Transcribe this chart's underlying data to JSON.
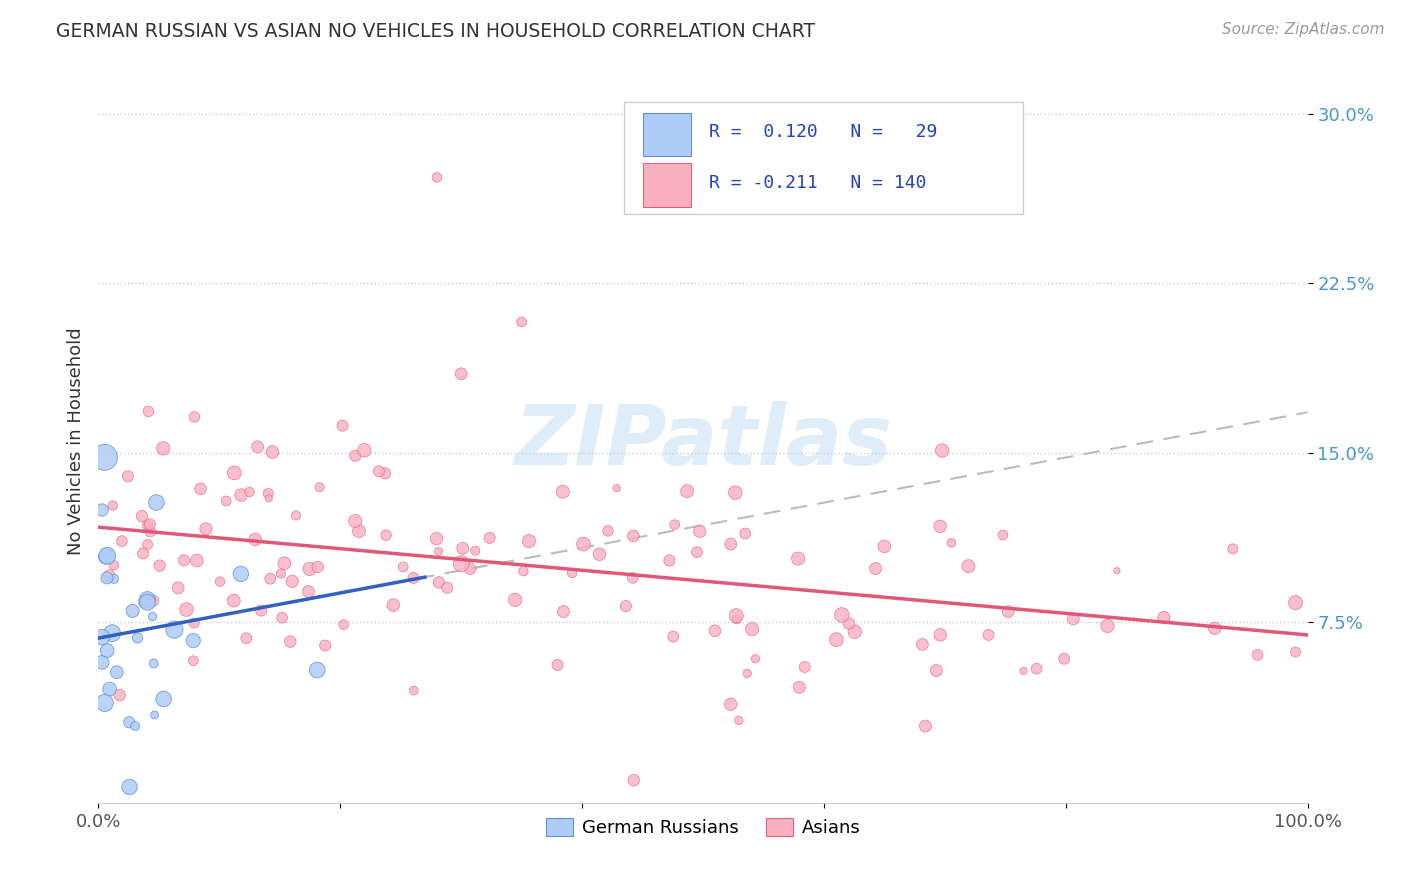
{
  "title": "GERMAN RUSSIAN VS ASIAN NO VEHICLES IN HOUSEHOLD CORRELATION CHART",
  "source": "Source: ZipAtlas.com",
  "ylabel": "No Vehicles in Household",
  "ytick_labels": [
    "7.5%",
    "15.0%",
    "22.5%",
    "30.0%"
  ],
  "ytick_values": [
    0.075,
    0.15,
    0.225,
    0.3
  ],
  "xlim": [
    0.0,
    1.0
  ],
  "ylim": [
    -0.005,
    0.315
  ],
  "watermark": "ZIPatlas",
  "blue_fill": "#aeccf8",
  "blue_edge": "#6090d8",
  "pink_fill": "#f8b0c0",
  "pink_edge": "#e86080",
  "blue_line_color": "#3060c0",
  "pink_line_color": "#e05878",
  "gray_dash_color": "#bbbbbb",
  "legend_r1": "R =  0.120",
  "legend_n1": "N =   29",
  "legend_r2": "R = -0.211",
  "legend_n2": "N = 140",
  "legend_text_color": "#2244bb",
  "title_color": "#333333",
  "source_color": "#999999",
  "ytick_color": "#4499cc",
  "xtick_color": "#555555",
  "grid_color": "#cccccc"
}
